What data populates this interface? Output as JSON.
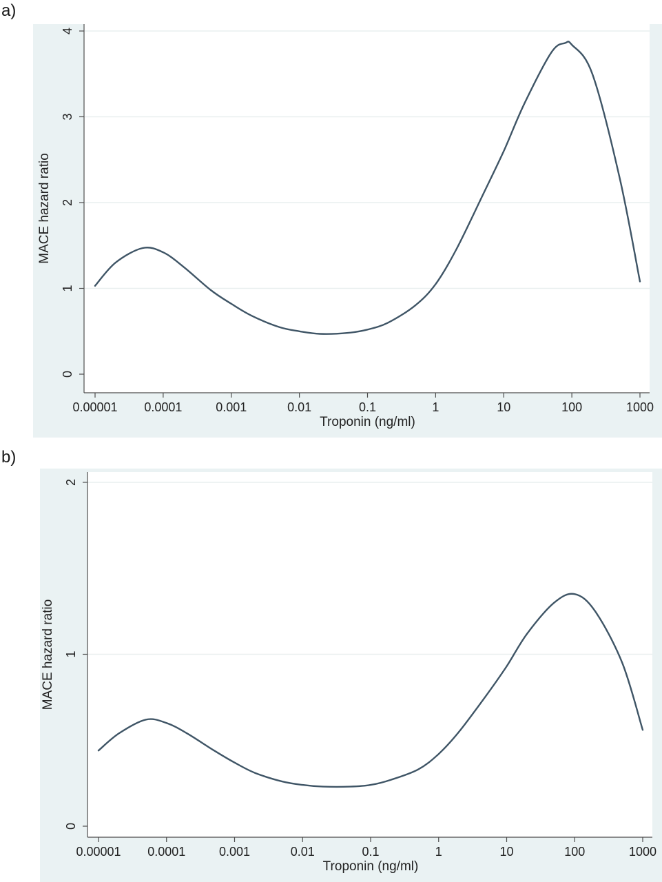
{
  "chart_data": [
    {
      "panel_label": "a)",
      "type": "line",
      "xlabel": "Troponin (ng/ml)",
      "ylabel": "MACE hazard ratio",
      "x_scale": "log",
      "xlim": [
        1e-05,
        1000
      ],
      "ylim": [
        0,
        4
      ],
      "x_ticks": [
        "0.00001",
        "0.0001",
        "0.001",
        "0.01",
        "0.1",
        "1",
        "10",
        "100",
        "1000"
      ],
      "y_ticks": [
        "0",
        "1",
        "2",
        "3",
        "4"
      ],
      "grid": "horizontal",
      "series": [
        {
          "x": [
            1e-05,
            2e-05,
            5e-05,
            0.0001,
            0.0002,
            0.0005,
            0.001,
            0.002,
            0.005,
            0.01,
            0.02,
            0.05,
            0.1,
            0.2,
            0.5,
            1,
            2,
            5,
            10,
            20,
            50,
            80,
            100,
            200,
            500,
            1000
          ],
          "y": [
            1.03,
            1.3,
            1.47,
            1.42,
            1.25,
            0.98,
            0.82,
            0.68,
            0.55,
            0.5,
            0.47,
            0.48,
            0.52,
            0.6,
            0.8,
            1.05,
            1.45,
            2.1,
            2.6,
            3.15,
            3.75,
            3.86,
            3.84,
            3.5,
            2.3,
            1.08
          ]
        }
      ]
    },
    {
      "panel_label": "b)",
      "type": "line",
      "xlabel": "Troponin (ng/ml)",
      "ylabel": "MACE hazard ratio",
      "x_scale": "log",
      "xlim": [
        1e-05,
        1000
      ],
      "ylim": [
        0,
        2
      ],
      "x_ticks": [
        "0.00001",
        "0.0001",
        "0.001",
        "0.01",
        "0.1",
        "1",
        "10",
        "100",
        "1000"
      ],
      "y_ticks": [
        "0",
        "1",
        "2"
      ],
      "grid": "horizontal",
      "series": [
        {
          "x": [
            1e-05,
            2e-05,
            5e-05,
            0.0001,
            0.0002,
            0.0005,
            0.001,
            0.002,
            0.005,
            0.01,
            0.02,
            0.05,
            0.1,
            0.2,
            0.5,
            1,
            2,
            5,
            10,
            20,
            50,
            100,
            200,
            500,
            1000
          ],
          "y": [
            0.44,
            0.54,
            0.62,
            0.6,
            0.54,
            0.44,
            0.37,
            0.31,
            0.26,
            0.24,
            0.23,
            0.23,
            0.24,
            0.27,
            0.33,
            0.42,
            0.55,
            0.76,
            0.93,
            1.12,
            1.3,
            1.35,
            1.25,
            0.95,
            0.56
          ]
        }
      ]
    }
  ]
}
